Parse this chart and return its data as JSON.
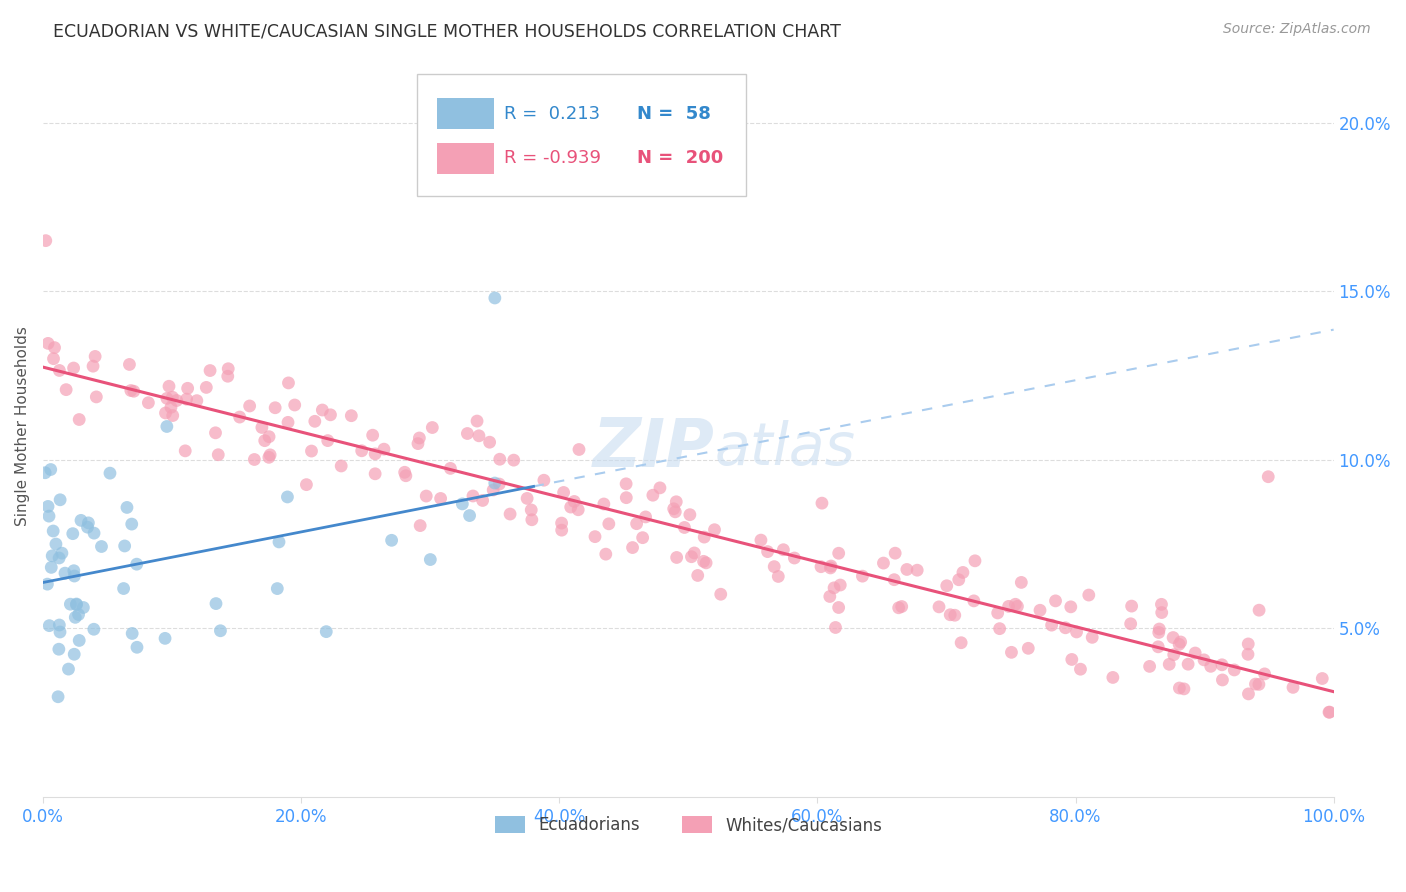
{
  "title": "ECUADORIAN VS WHITE/CAUCASIAN SINGLE MOTHER HOUSEHOLDS CORRELATION CHART",
  "source": "Source: ZipAtlas.com",
  "ylabel": "Single Mother Households",
  "xlabel_vals": [
    0.0,
    0.2,
    0.4,
    0.6,
    0.8,
    1.0
  ],
  "xlabel_labels": [
    "0.0%",
    "20.0%",
    "40.0%",
    "60.0%",
    "80.0%",
    "100.0%"
  ],
  "ylabel_vals": [
    0.05,
    0.1,
    0.15,
    0.2
  ],
  "ylabel_labels": [
    "5.0%",
    "10.0%",
    "15.0%",
    "20.0%"
  ],
  "xlim": [
    0.0,
    1.0
  ],
  "ylim": [
    0.0,
    0.22
  ],
  "legend_r_blue": "0.213",
  "legend_n_blue": "58",
  "legend_r_pink": "-0.939",
  "legend_n_pink": "200",
  "legend_label_blue": "Ecuadorians",
  "legend_label_pink": "Whites/Caucasians",
  "blue_scatter_color": "#90C0E0",
  "pink_scatter_color": "#F4A0B5",
  "blue_line_color": "#4488CC",
  "pink_line_color": "#E8527A",
  "blue_dash_color": "#AACCEE",
  "axis_label_color": "#4499FF",
  "title_color": "#333333",
  "source_color": "#999999",
  "watermark_color": "#C8DCF0",
  "grid_color": "#DDDDDD",
  "background_color": "#FFFFFF",
  "legend_edge_color": "#CCCCCC"
}
